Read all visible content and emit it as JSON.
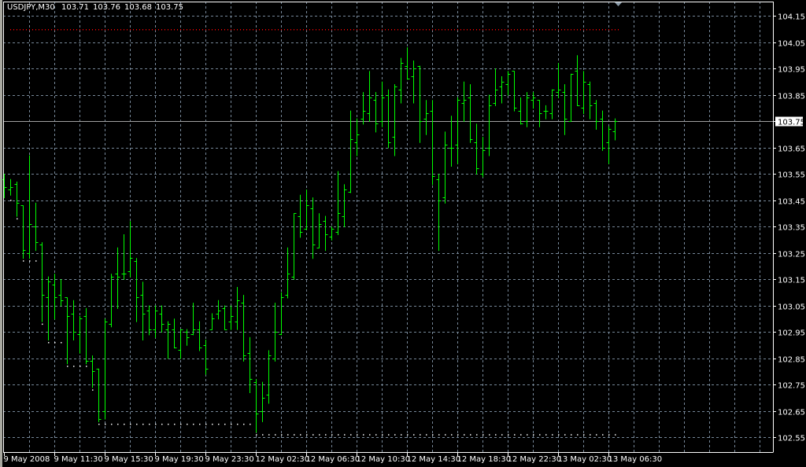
{
  "window": {
    "symbol_label": "USDJPY,M30",
    "ohlc_readout": {
      "open": "103.71",
      "high": "103.76",
      "low": "103.68",
      "close": "103.75"
    }
  },
  "colors": {
    "background": "#000000",
    "bars": "#00ff00",
    "grid": "#778899",
    "axis": "#ffffff",
    "bid_line": "#a0a0a0",
    "upper_level_line": "#ff0000",
    "running_low_dots": "#ffffff"
  },
  "chart_data": {
    "type": "ohlc",
    "symbol": "USDJPY",
    "timeframe": "M30",
    "ylim": [
      102.52,
      104.2
    ],
    "grid": true,
    "price_ticks": [
      "104.15",
      "104.05",
      "103.95",
      "103.85",
      "103.75",
      "103.65",
      "103.55",
      "103.45",
      "103.35",
      "103.25",
      "103.15",
      "103.05",
      "102.95",
      "102.85",
      "102.75",
      "102.65",
      "102.55"
    ],
    "time_ticks": [
      "9 May 2008",
      "9 May 11:30",
      "9 May 15:30",
      "9 May 19:30",
      "9 May 23:30",
      "12 May 02:30",
      "12 May 06:30",
      "12 May 10:30",
      "12 May 14:30",
      "12 May 18:30",
      "12 May 22:30",
      "13 May 02:30",
      "13 May 06:30"
    ],
    "current_price": "103.75",
    "upper_level": 104.1,
    "bars_ohlc": [
      [
        103.53,
        103.55,
        103.46,
        103.5
      ],
      [
        103.49,
        103.53,
        103.47,
        103.5
      ],
      [
        103.51,
        103.52,
        103.39,
        103.44
      ],
      [
        103.43,
        103.43,
        103.23,
        103.26
      ],
      [
        103.25,
        103.62,
        103.23,
        103.36
      ],
      [
        103.35,
        103.44,
        103.26,
        103.29
      ],
      [
        103.28,
        103.29,
        102.99,
        103.09
      ],
      [
        103.08,
        103.16,
        102.92,
        103.14
      ],
      [
        103.13,
        103.17,
        103.0,
        103.08
      ],
      [
        103.09,
        103.15,
        103.05,
        103.07
      ],
      [
        103.08,
        103.08,
        102.83,
        103.01
      ],
      [
        103.02,
        103.07,
        102.92,
        102.95
      ],
      [
        102.94,
        103.01,
        102.87,
        103.0
      ],
      [
        103.01,
        103.04,
        102.83,
        102.84
      ],
      [
        102.84,
        102.86,
        102.74,
        102.8
      ],
      [
        102.81,
        102.81,
        102.61,
        102.62
      ],
      [
        102.65,
        103.0,
        102.62,
        102.99
      ],
      [
        102.98,
        103.17,
        102.97,
        103.16
      ],
      [
        103.17,
        103.27,
        103.04,
        103.16
      ],
      [
        103.17,
        103.32,
        103.15,
        103.17
      ],
      [
        103.18,
        103.37,
        103.16,
        103.23
      ],
      [
        103.22,
        103.23,
        102.99,
        103.08
      ],
      [
        103.09,
        103.14,
        102.92,
        103.02
      ],
      [
        103.03,
        103.05,
        102.94,
        102.96
      ],
      [
        102.96,
        103.05,
        102.93,
        103.03
      ],
      [
        103.02,
        103.05,
        102.95,
        102.98
      ],
      [
        102.96,
        102.99,
        102.85,
        102.98
      ],
      [
        102.96,
        103.0,
        102.89,
        102.89
      ],
      [
        102.88,
        102.96,
        102.85,
        102.96
      ],
      [
        102.95,
        102.96,
        102.9,
        102.93
      ],
      [
        102.94,
        103.06,
        102.94,
        102.96
      ],
      [
        102.96,
        102.99,
        102.88,
        102.89
      ],
      [
        102.9,
        102.92,
        102.79,
        102.81
      ],
      [
        102.96,
        103.02,
        102.96,
        103.0
      ],
      [
        103.02,
        103.07,
        103.0,
        103.03
      ],
      [
        103.04,
        103.05,
        102.96,
        102.96
      ],
      [
        102.99,
        103.05,
        102.96,
        103.01
      ],
      [
        102.99,
        103.12,
        102.96,
        103.07
      ],
      [
        103.06,
        103.09,
        102.84,
        102.86
      ],
      [
        102.87,
        102.93,
        102.72,
        102.77
      ],
      [
        102.76,
        102.77,
        102.57,
        102.64
      ],
      [
        102.65,
        102.76,
        102.61,
        102.7
      ],
      [
        102.71,
        102.88,
        102.68,
        102.86
      ],
      [
        102.85,
        103.06,
        102.84,
        102.95
      ],
      [
        102.94,
        103.1,
        102.94,
        103.08
      ],
      [
        103.09,
        103.27,
        103.08,
        103.17
      ],
      [
        103.16,
        103.4,
        103.15,
        103.4
      ],
      [
        103.39,
        103.47,
        103.31,
        103.33
      ],
      [
        103.34,
        103.49,
        103.34,
        103.43
      ],
      [
        103.42,
        103.46,
        103.23,
        103.28
      ],
      [
        103.27,
        103.4,
        103.27,
        103.36
      ],
      [
        103.37,
        103.39,
        103.26,
        103.32
      ],
      [
        103.31,
        103.35,
        103.3,
        103.34
      ],
      [
        103.33,
        103.56,
        103.32,
        103.4
      ],
      [
        103.39,
        103.51,
        103.35,
        103.49
      ],
      [
        103.48,
        103.79,
        103.48,
        103.68
      ],
      [
        103.67,
        103.76,
        103.62,
        103.7
      ],
      [
        103.76,
        103.86,
        103.74,
        103.79
      ],
      [
        103.78,
        103.94,
        103.75,
        103.84
      ],
      [
        103.83,
        103.86,
        103.71,
        103.74
      ],
      [
        103.75,
        103.9,
        103.73,
        103.84
      ],
      [
        103.85,
        103.87,
        103.65,
        103.67
      ],
      [
        103.69,
        103.89,
        103.62,
        103.88
      ],
      [
        103.87,
        103.99,
        103.82,
        103.97
      ],
      [
        103.96,
        104.03,
        103.91,
        103.91
      ],
      [
        103.92,
        103.98,
        103.82,
        103.95
      ],
      [
        103.96,
        103.96,
        103.67,
        103.75
      ],
      [
        103.76,
        103.83,
        103.7,
        103.78
      ],
      [
        103.79,
        103.83,
        103.51,
        103.54
      ],
      [
        103.53,
        103.55,
        103.26,
        103.45
      ],
      [
        103.46,
        103.71,
        103.44,
        103.66
      ],
      [
        103.65,
        103.77,
        103.58,
        103.65
      ],
      [
        103.66,
        103.84,
        103.59,
        103.83
      ],
      [
        103.82,
        103.9,
        103.75,
        103.83
      ],
      [
        103.84,
        103.89,
        103.67,
        103.68
      ],
      [
        103.67,
        103.74,
        103.55,
        103.57
      ],
      [
        103.55,
        103.69,
        103.54,
        103.64
      ],
      [
        103.65,
        103.85,
        103.62,
        103.81
      ],
      [
        103.82,
        103.95,
        103.81,
        103.87
      ],
      [
        103.88,
        103.92,
        103.82,
        103.9
      ],
      [
        103.89,
        103.94,
        103.85,
        103.93
      ],
      [
        103.94,
        103.94,
        103.79,
        103.8
      ],
      [
        103.79,
        103.84,
        103.74,
        103.74
      ],
      [
        103.75,
        103.86,
        103.73,
        103.84
      ],
      [
        103.83,
        103.86,
        103.8,
        103.84
      ],
      [
        103.83,
        103.83,
        103.73,
        103.78
      ],
      [
        103.79,
        103.81,
        103.76,
        103.79
      ],
      [
        103.78,
        103.87,
        103.76,
        103.87
      ],
      [
        103.86,
        103.97,
        103.84,
        103.87
      ],
      [
        103.86,
        103.89,
        103.7,
        103.76
      ],
      [
        103.75,
        103.93,
        103.75,
        103.93
      ],
      [
        103.94,
        104.0,
        103.81,
        103.81
      ],
      [
        103.8,
        103.94,
        103.78,
        103.9
      ],
      [
        103.89,
        103.9,
        103.76,
        103.81
      ],
      [
        103.82,
        103.83,
        103.72,
        103.75
      ],
      [
        103.76,
        103.79,
        103.64,
        103.65
      ],
      [
        103.67,
        103.73,
        103.59,
        103.72
      ],
      [
        103.71,
        103.76,
        103.68,
        103.75
      ]
    ]
  }
}
